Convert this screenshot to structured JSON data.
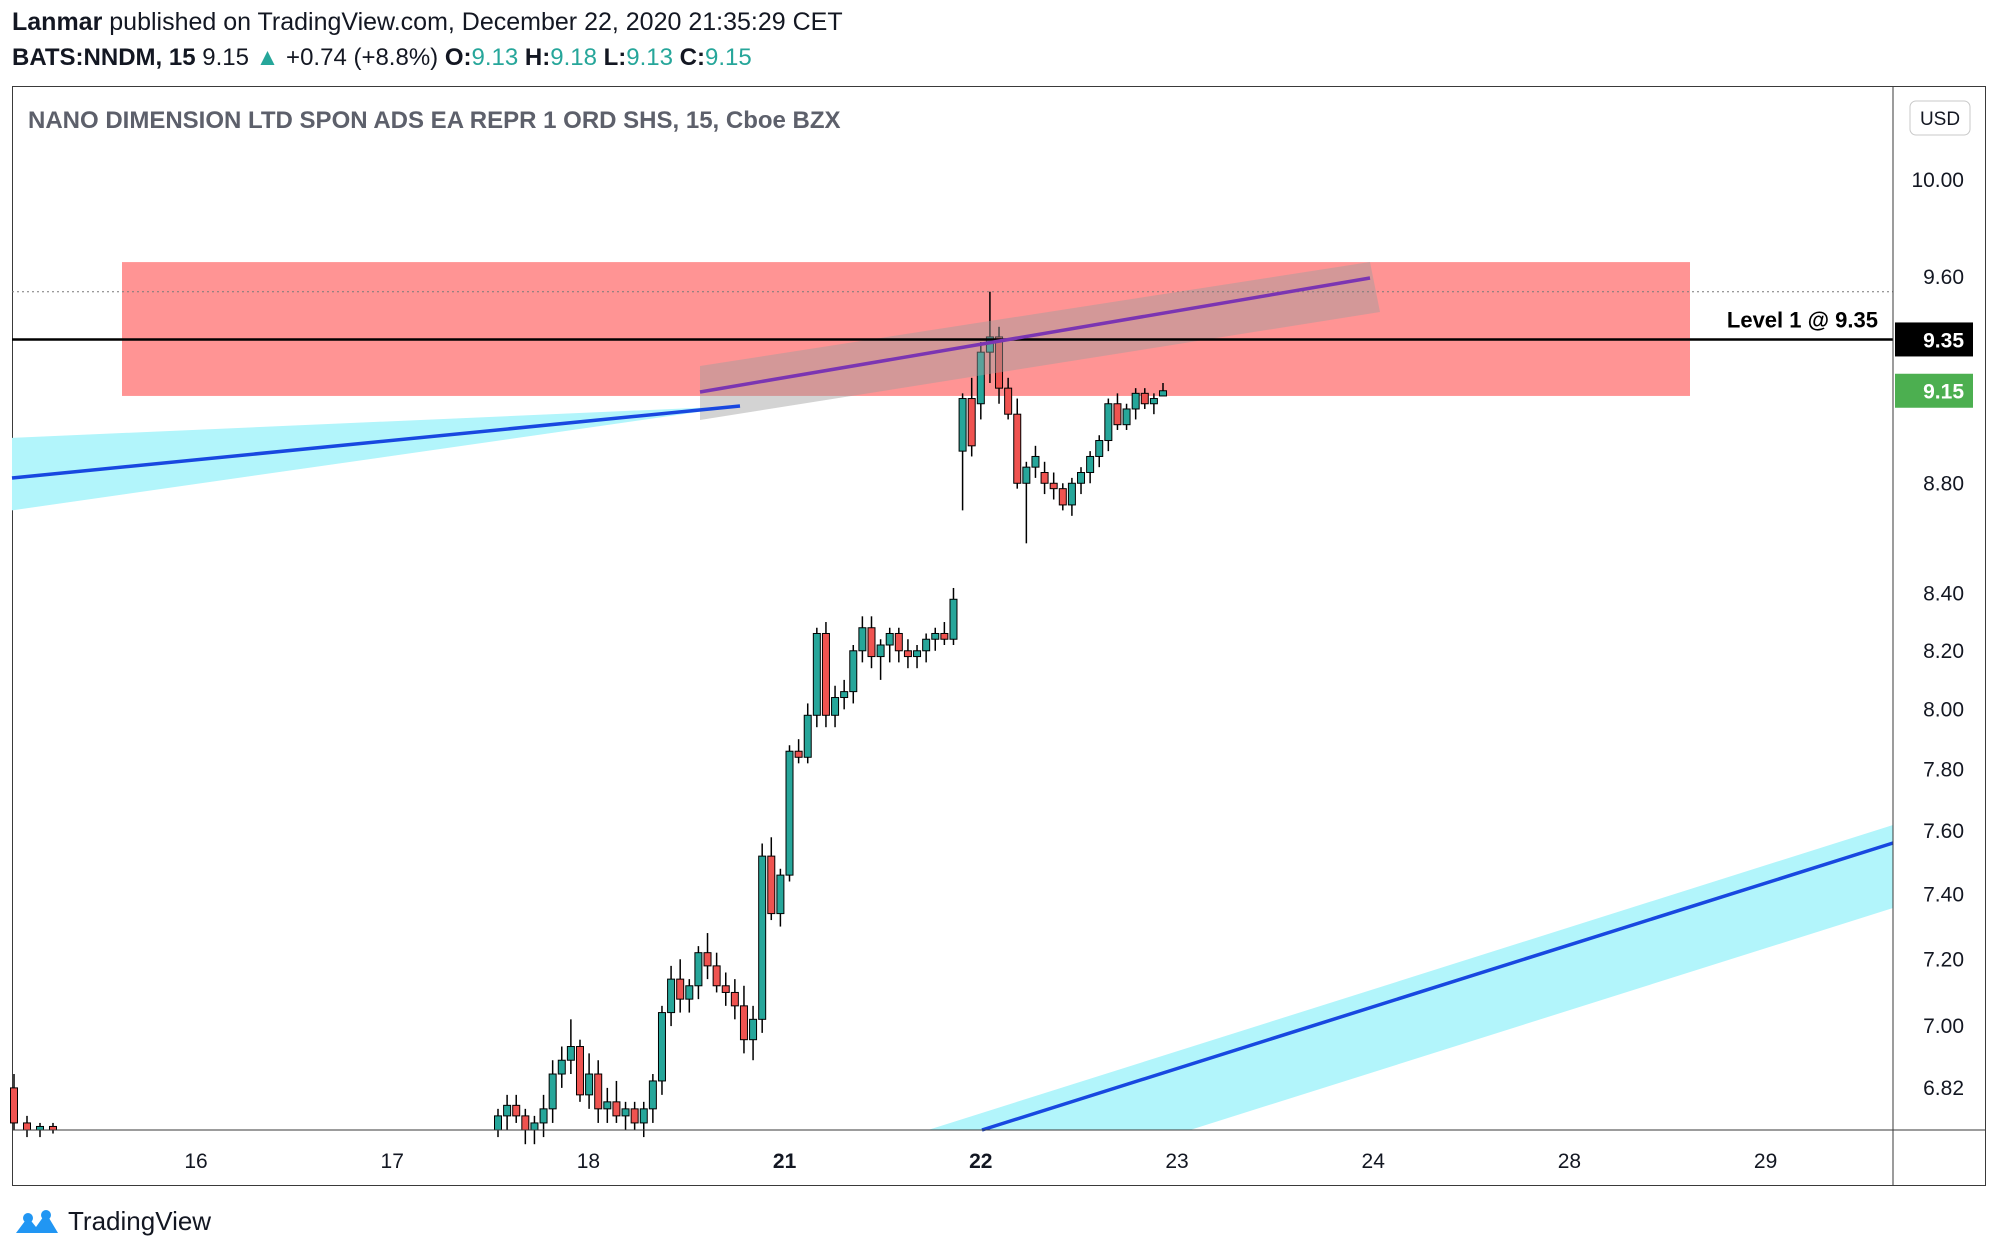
{
  "header": {
    "author": "Lanmar",
    "published_text": " published on TradingView.com, December 22, 2020 21:35:29 CET",
    "symbol": "BATS:NNDM, 15",
    "last_price": " 9.15",
    "change_arrow": "▲",
    "change": " +0.74 (+8.8%)",
    "o_label": "O:",
    "o_value": "9.13",
    "h_label": "H:",
    "h_value": "9.18",
    "l_label": "L:",
    "l_value": "9.13",
    "c_label": "C:",
    "c_value": "9.15"
  },
  "chart_title": "NANO DIMENSION LTD SPON ADS EA REPR 1 ORD SHS, 15, Cboe BZX",
  "currency_button": "USD",
  "level_annotation": "Level 1 @ 9.35",
  "footer_brand": "TradingView",
  "colors": {
    "up": "#26a69a",
    "down": "#ef5350",
    "zone": "#ff9494",
    "channel_fill": "#b2f5fb",
    "channel_line": "#1848e0",
    "purple_line": "#7b35b2",
    "grey_band": "#9e9e9e",
    "level_line": "#000000",
    "price_tag_green": "#4caf50"
  },
  "chart_data": {
    "type": "candlestick",
    "title": "NANO DIMENSION LTD SPON ADS EA REPR 1 ORD SHS, 15, Cboe BZX",
    "y_scale": "log",
    "ylim": [
      6.7,
      10.4
    ],
    "y_ticks": [
      "10.00",
      "9.60",
      "8.80",
      "8.40",
      "8.20",
      "8.00",
      "7.80",
      "7.60",
      "7.40",
      "7.20",
      "7.00",
      "6.82"
    ],
    "x_ticks": [
      "16",
      "17",
      "18",
      "21",
      "22",
      "23",
      "24",
      "28",
      "29"
    ],
    "x_ticks_bold": [
      "21",
      "22"
    ],
    "price_tags": [
      {
        "label": "9.35",
        "value": 9.35,
        "style": "black"
      },
      {
        "label": "9.15",
        "value": 9.15,
        "style": "green"
      }
    ],
    "dotted_high_line": 9.54,
    "supply_zone": {
      "from": 9.13,
      "to": 9.66
    },
    "level_line": 9.35,
    "candles_ohlc": [
      [
        6.82,
        6.86,
        6.7,
        6.72
      ],
      [
        6.72,
        6.74,
        6.68,
        6.7
      ],
      [
        6.7,
        6.72,
        6.68,
        6.71
      ],
      [
        6.71,
        6.72,
        6.69,
        6.7
      ],
      [
        6.7,
        6.76,
        6.68,
        6.74
      ],
      [
        6.74,
        6.8,
        6.7,
        6.77
      ],
      [
        6.77,
        6.8,
        6.72,
        6.74
      ],
      [
        6.74,
        6.76,
        6.66,
        6.7
      ],
      [
        6.7,
        6.74,
        6.66,
        6.72
      ],
      [
        6.72,
        6.8,
        6.68,
        6.76
      ],
      [
        6.76,
        6.9,
        6.72,
        6.86
      ],
      [
        6.86,
        6.94,
        6.82,
        6.9
      ],
      [
        6.9,
        7.02,
        6.86,
        6.94
      ],
      [
        6.94,
        6.96,
        6.78,
        6.8
      ],
      [
        6.8,
        6.92,
        6.76,
        6.86
      ],
      [
        6.86,
        6.9,
        6.72,
        6.76
      ],
      [
        6.76,
        6.82,
        6.72,
        6.78
      ],
      [
        6.78,
        6.84,
        6.72,
        6.74
      ],
      [
        6.74,
        6.78,
        6.7,
        6.76
      ],
      [
        6.76,
        6.78,
        6.7,
        6.72
      ],
      [
        6.72,
        6.78,
        6.68,
        6.76
      ],
      [
        6.76,
        6.86,
        6.72,
        6.84
      ],
      [
        6.84,
        7.06,
        6.8,
        7.04
      ],
      [
        7.04,
        7.18,
        7.0,
        7.14
      ],
      [
        7.14,
        7.2,
        7.04,
        7.08
      ],
      [
        7.08,
        7.14,
        7.04,
        7.12
      ],
      [
        7.12,
        7.24,
        7.08,
        7.22
      ],
      [
        7.22,
        7.28,
        7.14,
        7.18
      ],
      [
        7.18,
        7.22,
        7.1,
        7.12
      ],
      [
        7.12,
        7.16,
        7.06,
        7.1
      ],
      [
        7.1,
        7.14,
        7.02,
        7.06
      ],
      [
        7.06,
        7.12,
        6.92,
        6.96
      ],
      [
        6.96,
        7.06,
        6.9,
        7.02
      ],
      [
        7.02,
        7.56,
        6.98,
        7.52
      ],
      [
        7.52,
        7.58,
        7.32,
        7.34
      ],
      [
        7.34,
        7.48,
        7.3,
        7.46
      ],
      [
        7.46,
        7.88,
        7.44,
        7.86
      ],
      [
        7.86,
        7.9,
        7.82,
        7.84
      ],
      [
        7.84,
        8.02,
        7.82,
        7.98
      ],
      [
        7.98,
        8.28,
        7.94,
        8.26
      ],
      [
        8.26,
        8.3,
        7.94,
        7.98
      ],
      [
        7.98,
        8.08,
        7.94,
        8.04
      ],
      [
        8.04,
        8.1,
        8.0,
        8.06
      ],
      [
        8.06,
        8.22,
        8.02,
        8.2
      ],
      [
        8.2,
        8.32,
        8.16,
        8.28
      ],
      [
        8.28,
        8.32,
        8.14,
        8.18
      ],
      [
        8.18,
        8.24,
        8.1,
        8.22
      ],
      [
        8.22,
        8.28,
        8.16,
        8.26
      ],
      [
        8.26,
        8.28,
        8.16,
        8.2
      ],
      [
        8.2,
        8.24,
        8.14,
        8.18
      ],
      [
        8.18,
        8.22,
        8.14,
        8.2
      ],
      [
        8.2,
        8.26,
        8.16,
        8.24
      ],
      [
        8.24,
        8.28,
        8.2,
        8.26
      ],
      [
        8.26,
        8.3,
        8.22,
        8.24
      ],
      [
        8.24,
        8.42,
        8.22,
        8.38
      ],
      [
        8.92,
        9.14,
        8.7,
        9.12
      ],
      [
        9.12,
        9.2,
        8.9,
        8.94
      ],
      [
        9.1,
        9.34,
        9.04,
        9.3
      ],
      [
        9.3,
        9.54,
        9.18,
        9.36
      ],
      [
        9.36,
        9.4,
        9.1,
        9.16
      ],
      [
        9.16,
        9.2,
        9.04,
        9.06
      ],
      [
        9.06,
        9.12,
        8.78,
        8.8
      ],
      [
        8.8,
        8.88,
        8.58,
        8.86
      ],
      [
        8.86,
        8.94,
        8.82,
        8.9
      ],
      [
        8.84,
        8.88,
        8.76,
        8.8
      ],
      [
        8.8,
        8.84,
        8.74,
        8.78
      ],
      [
        8.78,
        8.8,
        8.7,
        8.72
      ],
      [
        8.72,
        8.82,
        8.68,
        8.8
      ],
      [
        8.8,
        8.86,
        8.76,
        8.84
      ],
      [
        8.84,
        8.92,
        8.8,
        8.9
      ],
      [
        8.9,
        8.98,
        8.86,
        8.96
      ],
      [
        8.96,
        9.12,
        8.92,
        9.1
      ],
      [
        9.1,
        9.14,
        9.0,
        9.02
      ],
      [
        9.02,
        9.1,
        9.0,
        9.08
      ],
      [
        9.08,
        9.16,
        9.04,
        9.14
      ],
      [
        9.14,
        9.16,
        9.08,
        9.1
      ],
      [
        9.1,
        9.14,
        9.06,
        9.12
      ],
      [
        9.13,
        9.18,
        9.13,
        9.15
      ]
    ]
  }
}
